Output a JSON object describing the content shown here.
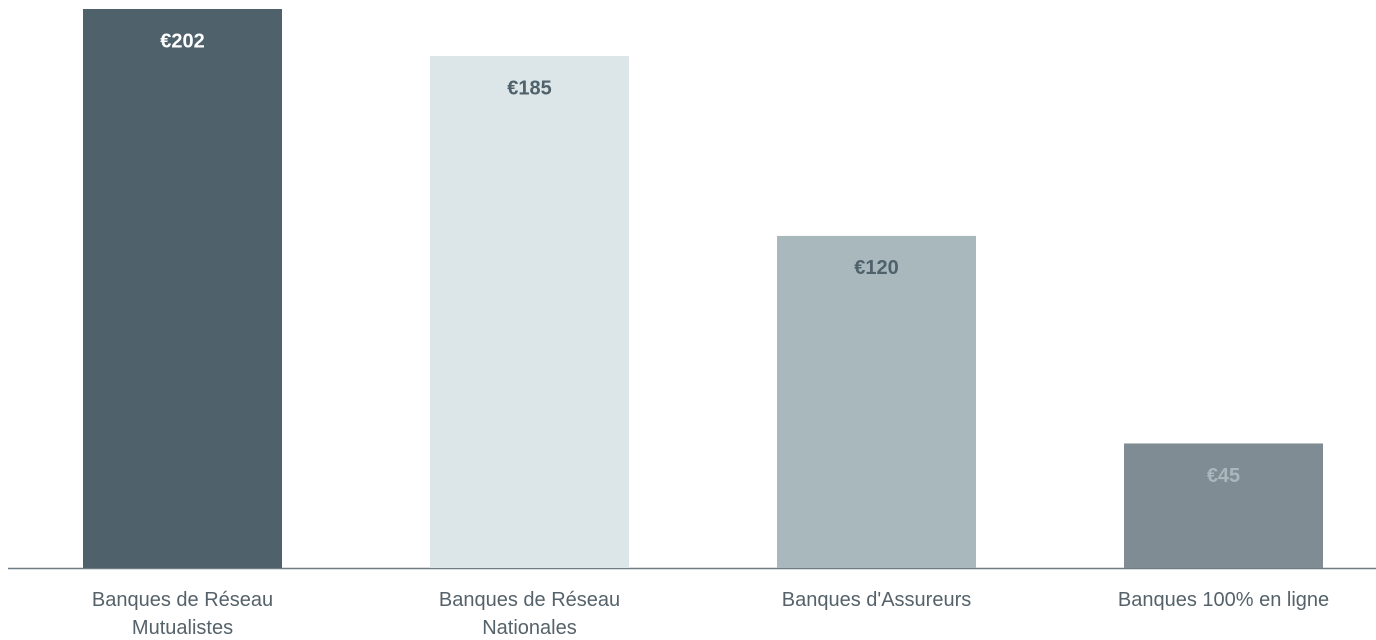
{
  "chart_data": {
    "type": "bar",
    "categories": [
      "Banques de Réseau Mutualistes",
      "Banques de Réseau Nationales",
      "Banques d'Assureurs",
      "Banques 100% en ligne"
    ],
    "values": [
      202,
      185,
      120,
      45
    ],
    "value_labels": [
      "€202",
      "€185",
      "€120",
      "€45"
    ],
    "colors": [
      "#4f626b",
      "#dce5e8",
      "#a9b8bd",
      "#7f8c94"
    ],
    "label_colors": [
      "#ffffff",
      "#4f626b",
      "#4f626b",
      "#a9b8bd"
    ],
    "ylim": [
      0,
      202
    ]
  }
}
